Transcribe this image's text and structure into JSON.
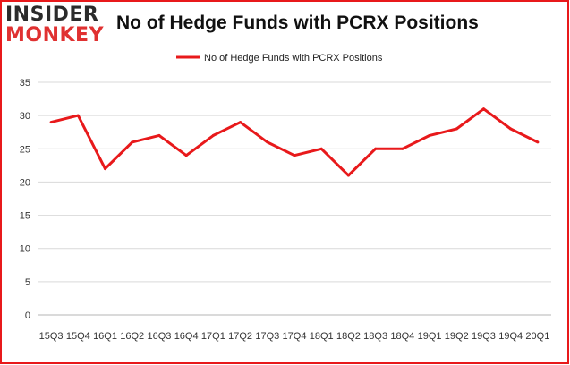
{
  "logo": {
    "line1": "INSIDER",
    "line2": "MONKEY"
  },
  "chart_data": {
    "type": "line",
    "title": "No of Hedge Funds with PCRX Positions",
    "xlabel": "",
    "ylabel": "",
    "categories": [
      "15Q3",
      "15Q4",
      "16Q1",
      "16Q2",
      "16Q3",
      "16Q4",
      "17Q1",
      "17Q2",
      "17Q3",
      "17Q4",
      "18Q1",
      "18Q2",
      "18Q3",
      "18Q4",
      "19Q1",
      "19Q2",
      "19Q3",
      "19Q4",
      "20Q1"
    ],
    "series": [
      {
        "name": "No of Hedge Funds with PCRX Positions",
        "values": [
          29,
          30,
          22,
          26,
          27,
          24,
          27,
          29,
          26,
          24,
          25,
          21,
          25,
          25,
          27,
          28,
          31,
          28,
          26
        ],
        "color": "#e8191b"
      }
    ],
    "ylim": [
      0,
      35
    ],
    "yticks": [
      "0",
      "5",
      "10",
      "15",
      "20",
      "25",
      "30",
      "35"
    ],
    "grid": true,
    "legend": "top-center",
    "frame_color": "#e8191b"
  }
}
